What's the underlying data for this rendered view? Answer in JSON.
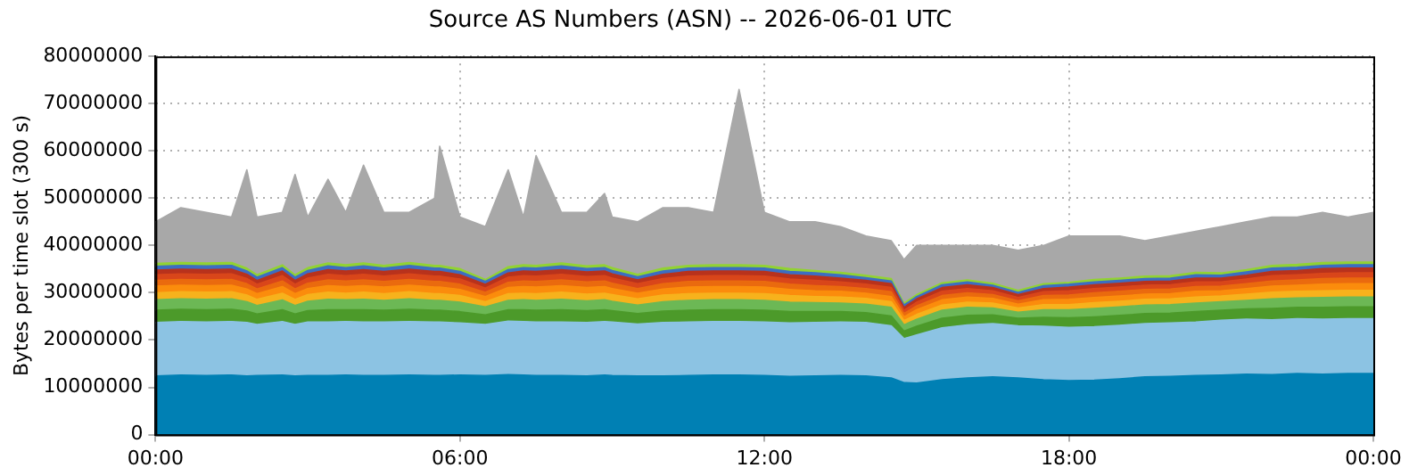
{
  "chart_data": {
    "type": "area",
    "title": "Source AS Numbers (ASN) -- 2026-06-01 UTC",
    "ylabel": "Bytes per time slot (300 s)",
    "stacked": true,
    "grid": true,
    "legend": false,
    "marker": "none",
    "x": [
      0,
      0.5,
      1,
      1.5,
      1.8,
      2,
      2.5,
      2.75,
      3,
      3.4,
      3.75,
      4.1,
      4.5,
      5,
      5.5,
      5.6,
      6,
      6.5,
      6.95,
      7.25,
      7.5,
      8,
      8.5,
      8.85,
      9,
      9.5,
      10,
      10.5,
      11,
      11.5,
      12,
      12.5,
      13,
      13.5,
      14,
      14.5,
      14.75,
      15,
      15.5,
      16,
      16.5,
      17,
      17.5,
      18,
      18.5,
      19,
      19.5,
      20,
      20.5,
      21,
      21.5,
      22,
      22.5,
      23,
      23.5,
      24
    ],
    "xlim": [
      0,
      24
    ],
    "xticks": [
      {
        "value": 0,
        "label": "00:00"
      },
      {
        "value": 6,
        "label": "06:00"
      },
      {
        "value": 12,
        "label": "12:00"
      },
      {
        "value": 18,
        "label": "18:00"
      },
      {
        "value": 24,
        "label": "00:00"
      }
    ],
    "ylim": [
      0,
      80000000
    ],
    "yticks": [
      0,
      10000000,
      20000000,
      30000000,
      40000000,
      50000000,
      60000000,
      70000000,
      80000000
    ],
    "series": [
      {
        "color": "#0080b4",
        "values": [
          12400000.0,
          12600000.0,
          12500000.0,
          12600000.0,
          12400000.0,
          12500000.0,
          12600000.0,
          12400000.0,
          12500000.0,
          12500000.0,
          12600000.0,
          12500000.0,
          12500000.0,
          12600000.0,
          12500000.0,
          12500000.0,
          12600000.0,
          12500000.0,
          12700000.0,
          12600000.0,
          12500000.0,
          12500000.0,
          12400000.0,
          12600000.0,
          12500000.0,
          12400000.0,
          12400000.0,
          12500000.0,
          12600000.0,
          12600000.0,
          12500000.0,
          12300000.0,
          12400000.0,
          12500000.0,
          12400000.0,
          12000000.0,
          11000000.0,
          10900000.0,
          11600000.0,
          12000000.0,
          12200000.0,
          12000000.0,
          11600000.0,
          11400000.0,
          11500000.0,
          11800000.0,
          12200000.0,
          12300000.0,
          12500000.0,
          12600000.0,
          12800000.0,
          12700000.0,
          12900000.0,
          12800000.0,
          12900000.0,
          12900000.0
        ]
      },
      {
        "color": "#8cc3e3",
        "values": [
          11300000.0,
          11300000.0,
          11300000.0,
          11300000.0,
          11300000.0,
          10800000.0,
          11300000.0,
          10900000.0,
          11300000.0,
          11300000.0,
          11300000.0,
          11300000.0,
          11300000.0,
          11300000.0,
          11300000.0,
          11300000.0,
          11000000.0,
          10800000.0,
          11300000.0,
          11300000.0,
          11300000.0,
          11300000.0,
          11300000.0,
          11300000.0,
          11300000.0,
          11000000.0,
          11300000.0,
          11300000.0,
          11300000.0,
          11300000.0,
          11300000.0,
          11300000.0,
          11300000.0,
          11300000.0,
          11300000.0,
          11000000.0,
          9300000.0,
          10200000.0,
          11000000.0,
          11200000.0,
          11300000.0,
          11000000.0,
          11300000.0,
          11300000.0,
          11300000.0,
          11300000.0,
          11300000.0,
          11300000.0,
          11300000.0,
          11600000.0,
          11600000.0,
          11600000.0,
          11600000.0,
          11600000.0,
          11600000.0,
          11600000.0
        ]
      },
      {
        "color": "#4c9a2a",
        "values": [
          2600000.0,
          2600000.0,
          2600000.0,
          2600000.0,
          2400000.0,
          2200000.0,
          2500000.0,
          2200000.0,
          2400000.0,
          2600000.0,
          2500000.0,
          2600000.0,
          2500000.0,
          2600000.0,
          2500000.0,
          2500000.0,
          2400000.0,
          2000000.0,
          2400000.0,
          2500000.0,
          2500000.0,
          2600000.0,
          2500000.0,
          2500000.0,
          2400000.0,
          2200000.0,
          2400000.0,
          2500000.0,
          2500000.0,
          2500000.0,
          2500000.0,
          2400000.0,
          2300000.0,
          2200000.0,
          2100000.0,
          2100000.0,
          1600000.0,
          1800000.0,
          2000000.0,
          2000000.0,
          1800000.0,
          1600000.0,
          1900000.0,
          2000000.0,
          2100000.0,
          2100000.0,
          2100000.0,
          2100000.0,
          2200000.0,
          2100000.0,
          2200000.0,
          2400000.0,
          2400000.0,
          2500000.0,
          2500000.0,
          2500000.0
        ]
      },
      {
        "color": "#6cb855",
        "values": [
          2200000.0,
          2200000.0,
          2200000.0,
          2200000.0,
          2000000.0,
          1800000.0,
          2100000.0,
          1800000.0,
          2000000.0,
          2200000.0,
          2100000.0,
          2200000.0,
          2100000.0,
          2200000.0,
          2100000.0,
          2100000.0,
          2000000.0,
          1700000.0,
          2000000.0,
          2100000.0,
          2100000.0,
          2200000.0,
          2100000.0,
          2100000.0,
          2000000.0,
          1800000.0,
          2000000.0,
          2100000.0,
          2100000.0,
          2100000.0,
          2100000.0,
          2000000.0,
          1900000.0,
          1800000.0,
          1800000.0,
          1800000.0,
          1300000.0,
          1500000.0,
          1700000.0,
          1700000.0,
          1500000.0,
          1300000.0,
          1600000.0,
          1700000.0,
          1800000.0,
          1800000.0,
          1800000.0,
          1800000.0,
          1800000.0,
          1800000.0,
          1800000.0,
          2000000.0,
          2000000.0,
          2100000.0,
          2100000.0,
          2100000.0
        ]
      },
      {
        "color": "#f7b21c",
        "values": [
          1500000.0,
          1500000.0,
          1500000.0,
          1500000.0,
          1400000.0,
          1300000.0,
          1400000.0,
          1300000.0,
          1400000.0,
          1500000.0,
          1400000.0,
          1500000.0,
          1400000.0,
          1500000.0,
          1400000.0,
          1400000.0,
          1400000.0,
          1100000.0,
          1400000.0,
          1400000.0,
          1400000.0,
          1500000.0,
          1400000.0,
          1400000.0,
          1400000.0,
          1300000.0,
          1400000.0,
          1400000.0,
          1400000.0,
          1400000.0,
          1400000.0,
          1400000.0,
          1300000.0,
          1300000.0,
          1200000.0,
          1200000.0,
          900000.0,
          1000000.0,
          1100000.0,
          1100000.0,
          1000000.0,
          900000.0,
          1100000.0,
          1100000.0,
          1200000.0,
          1200000.0,
          1200000.0,
          1200000.0,
          1300000.0,
          1200000.0,
          1300000.0,
          1400000.0,
          1400000.0,
          1400000.0,
          1400000.0,
          1400000.0
        ]
      },
      {
        "color": "#fb8c0c",
        "values": [
          1400000.0,
          1400000.0,
          1400000.0,
          1400000.0,
          1300000.0,
          1200000.0,
          1400000.0,
          1200000.0,
          1300000.0,
          1400000.0,
          1400000.0,
          1400000.0,
          1400000.0,
          1400000.0,
          1400000.0,
          1400000.0,
          1300000.0,
          1100000.0,
          1300000.0,
          1400000.0,
          1400000.0,
          1400000.0,
          1400000.0,
          1400000.0,
          1300000.0,
          1200000.0,
          1300000.0,
          1400000.0,
          1400000.0,
          1400000.0,
          1400000.0,
          1300000.0,
          1200000.0,
          1200000.0,
          1100000.0,
          1100000.0,
          800000.0,
          1000000.0,
          1100000.0,
          1100000.0,
          1000000.0,
          800000.0,
          1000000.0,
          1100000.0,
          1100000.0,
          1100000.0,
          1100000.0,
          1100000.0,
          1200000.0,
          1100000.0,
          1200000.0,
          1300000.0,
          1300000.0,
          1400000.0,
          1400000.0,
          1400000.0
        ]
      },
      {
        "color": "#ea6a0e",
        "values": [
          1200000.0,
          1200000.0,
          1200000.0,
          1200000.0,
          1100000.0,
          1000000.0,
          1200000.0,
          1000000.0,
          1100000.0,
          1200000.0,
          1200000.0,
          1200000.0,
          1200000.0,
          1200000.0,
          1200000.0,
          1200000.0,
          1100000.0,
          900000.0,
          1100000.0,
          1200000.0,
          1200000.0,
          1200000.0,
          1200000.0,
          1200000.0,
          1100000.0,
          1000000.0,
          1100000.0,
          1200000.0,
          1200000.0,
          1200000.0,
          1200000.0,
          1100000.0,
          1100000.0,
          1000000.0,
          1000000.0,
          1000000.0,
          700000.0,
          800000.0,
          900000.0,
          900000.0,
          800000.0,
          700000.0,
          900000.0,
          900000.0,
          1000000.0,
          1000000.0,
          1000000.0,
          1000000.0,
          1000000.0,
          1000000.0,
          1000000.0,
          1100000.0,
          1100000.0,
          1200000.0,
          1200000.0,
          1200000.0
        ]
      },
      {
        "color": "#d9461a",
        "values": [
          1200000.0,
          1200000.0,
          1200000.0,
          1200000.0,
          1100000.0,
          1000000.0,
          1100000.0,
          1000000.0,
          1100000.0,
          1200000.0,
          1100000.0,
          1200000.0,
          1100000.0,
          1200000.0,
          1100000.0,
          1100000.0,
          1100000.0,
          900000.0,
          1100000.0,
          1100000.0,
          1100000.0,
          1200000.0,
          1100000.0,
          1100000.0,
          1100000.0,
          1000000.0,
          1100000.0,
          1100000.0,
          1100000.0,
          1100000.0,
          1100000.0,
          1100000.0,
          1100000.0,
          1000000.0,
          900000.0,
          900000.0,
          700000.0,
          800000.0,
          900000.0,
          900000.0,
          800000.0,
          700000.0,
          800000.0,
          900000.0,
          900000.0,
          900000.0,
          900000.0,
          900000.0,
          1000000.0,
          900000.0,
          1000000.0,
          1100000.0,
          1100000.0,
          1100000.0,
          1100000.0,
          1100000.0
        ]
      },
      {
        "color": "#b8321c",
        "values": [
          1000000.0,
          1000000.0,
          1000000.0,
          1000000.0,
          900000.0,
          800000.0,
          1000000.0,
          800000.0,
          900000.0,
          1000000.0,
          1000000.0,
          1000000.0,
          1000000.0,
          1000000.0,
          1000000.0,
          1000000.0,
          900000.0,
          800000.0,
          900000.0,
          1000000.0,
          1000000.0,
          1000000.0,
          1000000.0,
          1000000.0,
          900000.0,
          800000.0,
          900000.0,
          1000000.0,
          1000000.0,
          1000000.0,
          1000000.0,
          900000.0,
          900000.0,
          800000.0,
          800000.0,
          800000.0,
          600000.0,
          700000.0,
          800000.0,
          800000.0,
          700000.0,
          600000.0,
          700000.0,
          800000.0,
          800000.0,
          800000.0,
          800000.0,
          800000.0,
          800000.0,
          800000.0,
          800000.0,
          900000.0,
          900000.0,
          1000000.0,
          1000000.0,
          1000000.0
        ]
      },
      {
        "color": "#3c6ec2",
        "values": [
          800000.0,
          800000.0,
          800000.0,
          800000.0,
          700000.0,
          700000.0,
          700000.0,
          700000.0,
          700000.0,
          800000.0,
          700000.0,
          800000.0,
          700000.0,
          800000.0,
          700000.0,
          700000.0,
          700000.0,
          600000.0,
          700000.0,
          700000.0,
          700000.0,
          800000.0,
          700000.0,
          700000.0,
          700000.0,
          700000.0,
          700000.0,
          700000.0,
          700000.0,
          700000.0,
          700000.0,
          700000.0,
          700000.0,
          700000.0,
          600000.0,
          600000.0,
          500000.0,
          500000.0,
          600000.0,
          600000.0,
          500000.0,
          500000.0,
          600000.0,
          600000.0,
          600000.0,
          600000.0,
          600000.0,
          600000.0,
          700000.0,
          600000.0,
          700000.0,
          700000.0,
          700000.0,
          700000.0,
          700000.0,
          700000.0
        ]
      },
      {
        "color": "#92d233",
        "values": [
          600000.0,
          600000.0,
          600000.0,
          600000.0,
          600000.0,
          500000.0,
          600000.0,
          500000.0,
          600000.0,
          600000.0,
          600000.0,
          600000.0,
          600000.0,
          600000.0,
          600000.0,
          600000.0,
          600000.0,
          400000.0,
          600000.0,
          600000.0,
          600000.0,
          600000.0,
          600000.0,
          600000.0,
          600000.0,
          500000.0,
          600000.0,
          600000.0,
          600000.0,
          600000.0,
          600000.0,
          600000.0,
          500000.0,
          500000.0,
          500000.0,
          500000.0,
          400000.0,
          400000.0,
          400000.0,
          400000.0,
          400000.0,
          400000.0,
          400000.0,
          400000.0,
          500000.0,
          500000.0,
          500000.0,
          500000.0,
          500000.0,
          500000.0,
          500000.0,
          600000.0,
          600000.0,
          600000.0,
          600000.0,
          600000.0
        ]
      },
      {
        "color": "#a8a8a8",
        "values": [
          8800000.0,
          11600000.0,
          10700000.0,
          9600000.0,
          20800000.0,
          12200000.0,
          11100000.0,
          21200000.0,
          10700000.0,
          17700000.0,
          11100000.0,
          20700000.0,
          11200000.0,
          10600000.0,
          14200000.0,
          25200000.0,
          10900000.0,
          11200000.0,
          20500000.0,
          10100000.0,
          23200000.0,
          10700000.0,
          11300000.0,
          15100000.0,
          10700000.0,
          11100000.0,
          12800000.0,
          12200000.0,
          11100000.0,
          37100000.0,
          11200000.0,
          9900000.0,
          10300000.0,
          9700000.0,
          8300000.0,
          8000000.0,
          9200000.0,
          10400000.0,
          7900000.0,
          7300000.0,
          8000000.0,
          8500000.0,
          8100000.0,
          9800000.0,
          9200000.0,
          8900000.0,
          7500000.0,
          8400000.0,
          8700000.0,
          9800000.0,
          10100000.0,
          10200000.0,
          10000000.0,
          10600000.0,
          9500000.0,
          10500000.0
        ]
      }
    ]
  }
}
